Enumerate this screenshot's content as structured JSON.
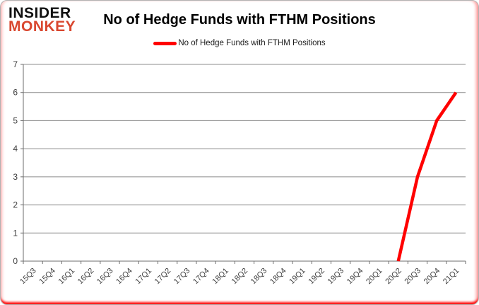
{
  "logo": {
    "line1": "INSIDER",
    "line2": "MONKEY"
  },
  "header": {
    "title": "No of Hedge Funds with FTHM Positions"
  },
  "legend": {
    "label": "No of Hedge Funds with FTHM Positions"
  },
  "chart_data": {
    "type": "line",
    "title": "No of Hedge Funds with FTHM Positions",
    "categories": [
      "15Q3",
      "15Q4",
      "16Q1",
      "16Q2",
      "16Q3",
      "16Q4",
      "17Q1",
      "17Q2",
      "17Q3",
      "17Q4",
      "18Q1",
      "18Q2",
      "18Q3",
      "18Q4",
      "19Q1",
      "19Q2",
      "19Q3",
      "19Q4",
      "20Q1",
      "20Q2",
      "20Q3",
      "20Q4",
      "21Q1"
    ],
    "series": [
      {
        "name": "No of Hedge Funds with FTHM Positions",
        "color": "#ff0000",
        "values": [
          null,
          null,
          null,
          null,
          null,
          null,
          null,
          null,
          null,
          null,
          null,
          null,
          null,
          null,
          null,
          null,
          null,
          null,
          null,
          0,
          3,
          5,
          6
        ]
      }
    ],
    "xlabel": "",
    "ylabel": "",
    "ylim": [
      0,
      7
    ],
    "yticks": [
      0,
      1,
      2,
      3,
      4,
      5,
      6,
      7
    ],
    "grid": true,
    "legend_position": "top-center"
  },
  "colors": {
    "series_red": "#ff0000",
    "logo_red": "#d9472f",
    "logo_black": "#111111",
    "gridline": "#8c8c8c",
    "axis": "#6e6e6e",
    "label_text": "#3f3f3f",
    "border_red": "#ff0000",
    "border_pink": "#ffaaaa",
    "frame_gray": "#b3b3b3"
  }
}
